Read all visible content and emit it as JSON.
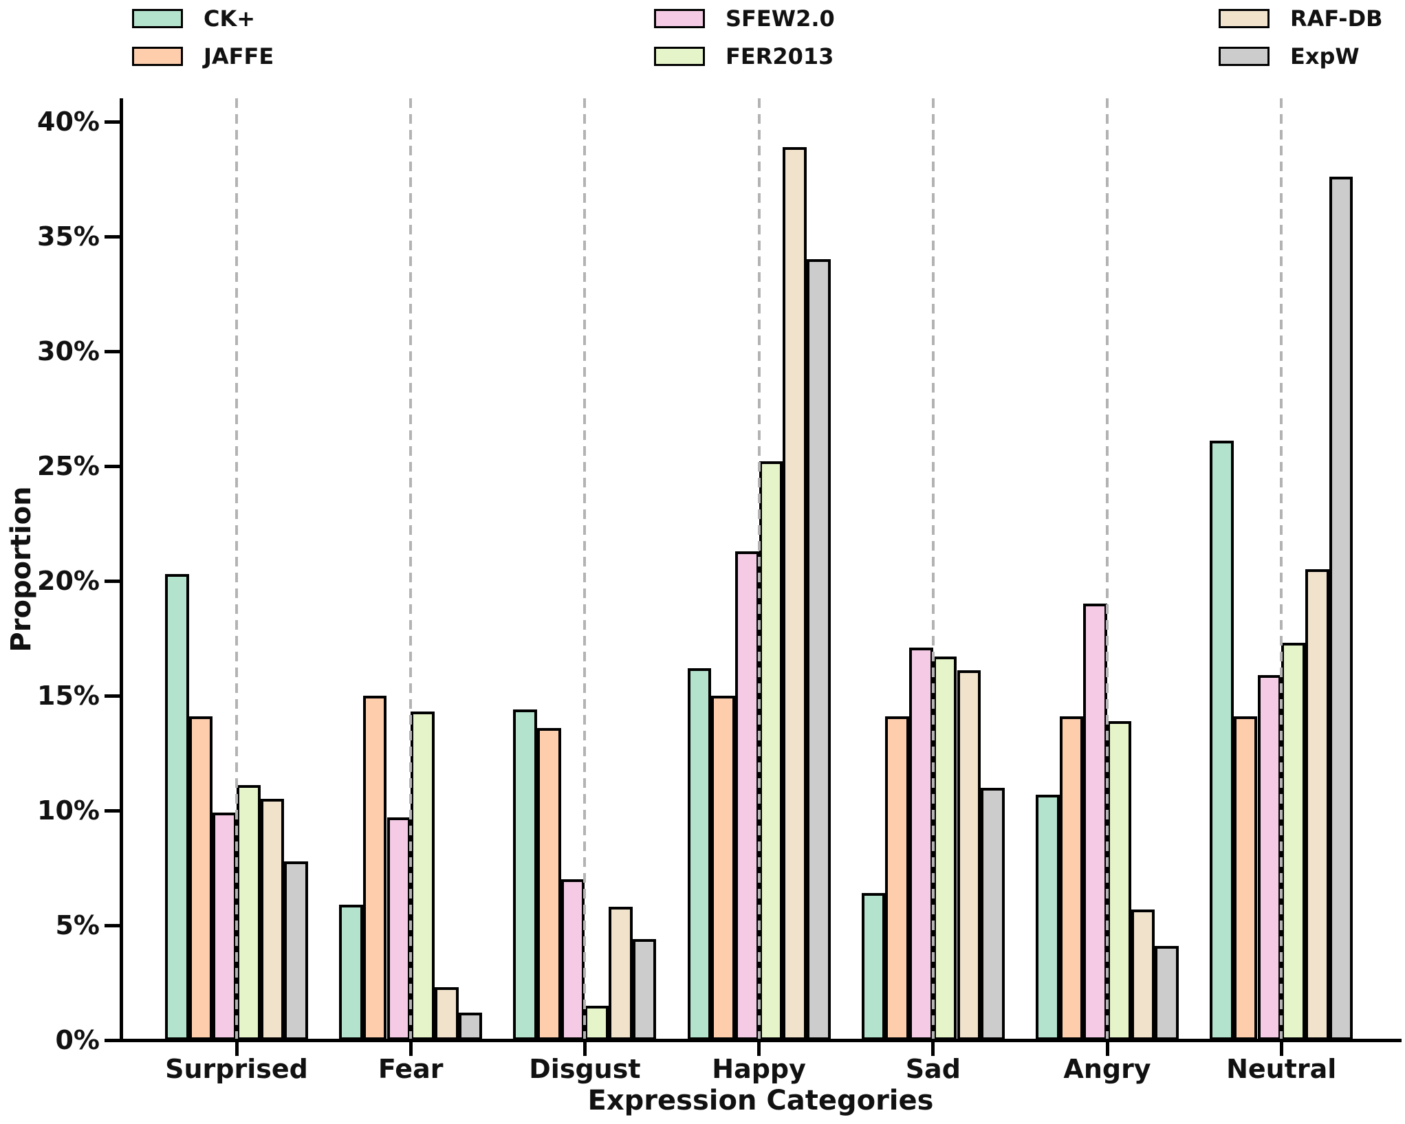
{
  "chart_data": {
    "type": "bar",
    "title": "",
    "xlabel": "Expression Categories",
    "ylabel": "Proportion",
    "categories": [
      "Surprised",
      "Fear",
      "Disgust",
      "Happy",
      "Sad",
      "Angry",
      "Neutral"
    ],
    "series": [
      {
        "name": "CK+",
        "color": "#b3e2cd",
        "values": [
          20.3,
          5.9,
          14.4,
          16.2,
          6.4,
          10.7,
          26.1
        ]
      },
      {
        "name": "JAFFE",
        "color": "#fdcdac",
        "values": [
          14.1,
          15.0,
          13.6,
          15.0,
          14.1,
          14.1,
          14.1
        ]
      },
      {
        "name": "SFEW2.0",
        "color": "#f4cae4",
        "values": [
          9.9,
          9.7,
          7.0,
          21.3,
          17.1,
          19.0,
          15.9
        ]
      },
      {
        "name": "FER2013",
        "color": "#e6f5c9",
        "values": [
          11.1,
          14.3,
          1.5,
          25.2,
          16.7,
          13.9,
          17.3
        ]
      },
      {
        "name": "RAF-DB",
        "color": "#f1e2cc",
        "values": [
          10.5,
          2.3,
          5.8,
          38.9,
          16.1,
          5.7,
          20.5
        ]
      },
      {
        "name": "ExpW",
        "color": "#cccccc",
        "values": [
          7.8,
          1.2,
          4.4,
          34.0,
          11.0,
          4.1,
          37.6
        ]
      }
    ],
    "y_ticks": [
      {
        "value": 0,
        "label": "0%"
      },
      {
        "value": 5,
        "label": "5%"
      },
      {
        "value": 10,
        "label": "10%"
      },
      {
        "value": 15,
        "label": "15%"
      },
      {
        "value": 20,
        "label": "20%"
      },
      {
        "value": 25,
        "label": "25%"
      },
      {
        "value": 30,
        "label": "30%"
      },
      {
        "value": 35,
        "label": "35%"
      },
      {
        "value": 40,
        "label": "40%"
      },
      {
        "value": 41,
        "label": ""
      }
    ],
    "ylim": [
      0,
      41
    ],
    "grid": "dashed vertical gray lines at each category center",
    "legend_position": "top, 3 columns, 2 rows, no frame",
    "bar_edge_color": "#000000",
    "axis_color": "#000000",
    "gridline_color": "#b3b3b3"
  }
}
